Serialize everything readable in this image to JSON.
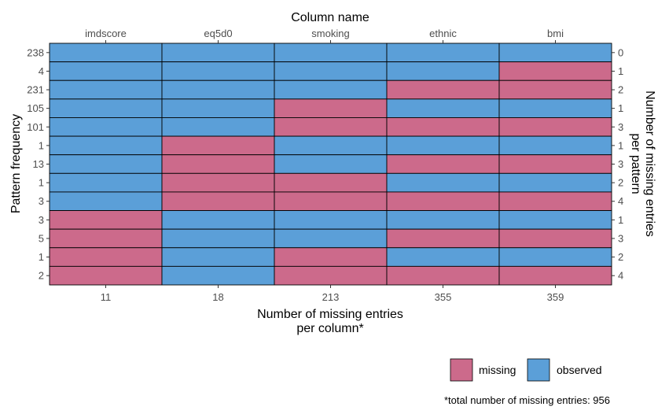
{
  "chart_data": {
    "type": "heatmap",
    "columns": [
      "imdscore",
      "eq5d0",
      "smoking",
      "ethnic",
      "bmi"
    ],
    "column_missing_counts": [
      "11",
      "18",
      "213",
      "355",
      "359"
    ],
    "patterns": [
      {
        "frequency": "238",
        "missing_count": "0",
        "cells": [
          0,
          0,
          0,
          0,
          0
        ]
      },
      {
        "frequency": "4",
        "missing_count": "1",
        "cells": [
          0,
          0,
          0,
          0,
          1
        ]
      },
      {
        "frequency": "231",
        "missing_count": "2",
        "cells": [
          0,
          0,
          0,
          1,
          1
        ]
      },
      {
        "frequency": "105",
        "missing_count": "1",
        "cells": [
          0,
          0,
          1,
          0,
          0
        ]
      },
      {
        "frequency": "101",
        "missing_count": "3",
        "cells": [
          0,
          0,
          1,
          1,
          1
        ]
      },
      {
        "frequency": "1",
        "missing_count": "1",
        "cells": [
          0,
          1,
          0,
          0,
          0
        ]
      },
      {
        "frequency": "13",
        "missing_count": "3",
        "cells": [
          0,
          1,
          0,
          1,
          1
        ]
      },
      {
        "frequency": "1",
        "missing_count": "2",
        "cells": [
          0,
          1,
          1,
          0,
          0
        ]
      },
      {
        "frequency": "3",
        "missing_count": "4",
        "cells": [
          0,
          1,
          1,
          1,
          1
        ]
      },
      {
        "frequency": "3",
        "missing_count": "1",
        "cells": [
          1,
          0,
          0,
          0,
          0
        ]
      },
      {
        "frequency": "5",
        "missing_count": "3",
        "cells": [
          1,
          0,
          0,
          1,
          1
        ]
      },
      {
        "frequency": "1",
        "missing_count": "2",
        "cells": [
          1,
          0,
          1,
          0,
          0
        ]
      },
      {
        "frequency": "2",
        "missing_count": "4",
        "cells": [
          1,
          0,
          1,
          1,
          1
        ]
      }
    ],
    "top_axis_title": "Column name",
    "left_axis_title": "Pattern frequency",
    "right_axis_title": [
      "Number of missing entries",
      "per pattern"
    ],
    "bottom_axis_title": [
      "Number of missing entries",
      "per column*"
    ],
    "legend": {
      "position": "bottom-right",
      "items": [
        {
          "label": "missing",
          "color": "#CC6A8B"
        },
        {
          "label": "observed",
          "color": "#5B9FD8"
        }
      ]
    },
    "footnote": "*total number of missing entries: 956",
    "colors": {
      "missing": "#CC6A8B",
      "observed": "#5B9FD8",
      "grid": "#000000"
    }
  }
}
